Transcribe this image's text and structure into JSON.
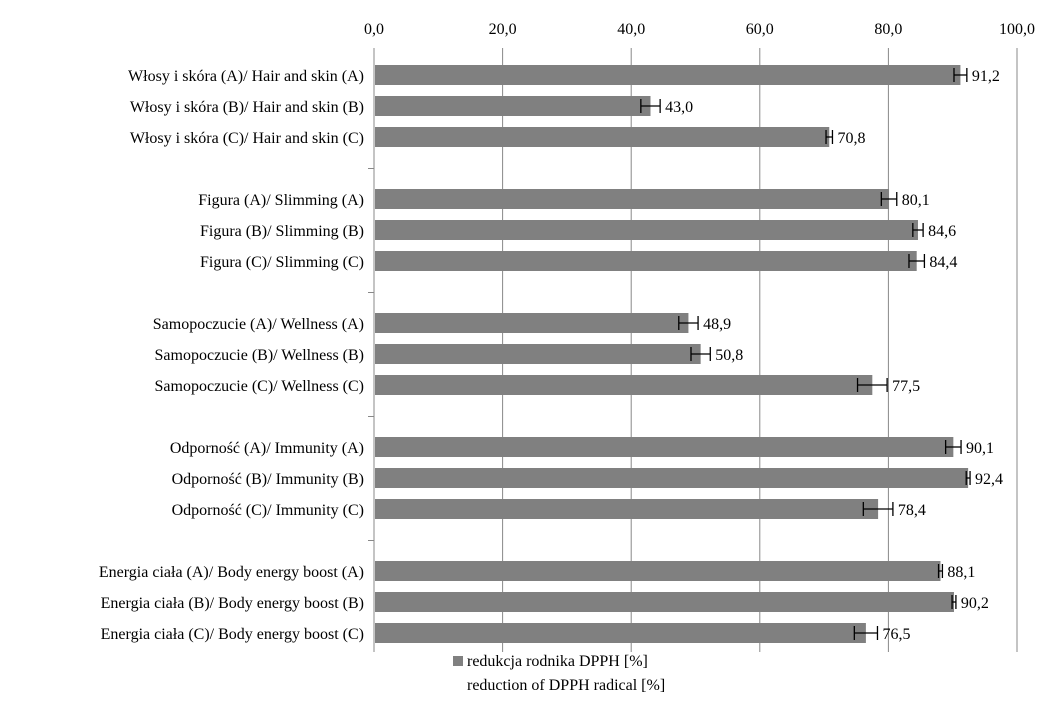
{
  "chart_data": {
    "type": "bar",
    "orientation": "horizontal",
    "xlim": [
      0,
      100
    ],
    "ticks": [
      {
        "value": 0,
        "label": "0,0"
      },
      {
        "value": 20,
        "label": "20,0"
      },
      {
        "value": 40,
        "label": "40,0"
      },
      {
        "value": 60,
        "label": "60,0"
      },
      {
        "value": 80,
        "label": "80,0"
      },
      {
        "value": 100,
        "label": "100,0"
      }
    ],
    "grid": "vertical",
    "x_axis_position": "top",
    "bar_color": "#808080",
    "groups": [
      {
        "bars": [
          {
            "category": "Włosy i skóra (A)/ Hair and skin (A)",
            "value": 91.2,
            "error": 1.0,
            "label": "91,2"
          },
          {
            "category": "Włosy i skóra (B)/ Hair and skin (B)",
            "value": 43.0,
            "error": 1.5,
            "label": "43,0"
          },
          {
            "category": "Włosy i skóra (C)/ Hair and skin (C)",
            "value": 70.8,
            "error": 0.5,
            "label": "70,8"
          }
        ]
      },
      {
        "bars": [
          {
            "category": "Figura (A)/ Slimming (A)",
            "value": 80.1,
            "error": 1.2,
            "label": "80,1"
          },
          {
            "category": "Figura (B)/ Slimming (B)",
            "value": 84.6,
            "error": 0.8,
            "label": "84,6"
          },
          {
            "category": "Figura (C)/ Slimming (C)",
            "value": 84.4,
            "error": 1.2,
            "label": "84,4"
          }
        ]
      },
      {
        "bars": [
          {
            "category": "Samopoczucie (A)/ Wellness (A)",
            "value": 48.9,
            "error": 1.5,
            "label": "48,9"
          },
          {
            "category": "Samopoczucie (B)/ Wellness (B)",
            "value": 50.8,
            "error": 1.5,
            "label": "50,8"
          },
          {
            "category": "Samopoczucie (C)/ Wellness (C)",
            "value": 77.5,
            "error": 2.3,
            "label": "77,5"
          }
        ]
      },
      {
        "bars": [
          {
            "category": "Odporność (A)/ Immunity (A)",
            "value": 90.1,
            "error": 1.2,
            "label": "90,1"
          },
          {
            "category": "Odporność (B)/ Immunity (B)",
            "value": 92.4,
            "error": 0.3,
            "label": "92,4"
          },
          {
            "category": "Odporność (C)/ Immunity (C)",
            "value": 78.4,
            "error": 2.3,
            "label": "78,4"
          }
        ]
      },
      {
        "bars": [
          {
            "category": "Energia ciała (A)/ Body energy boost (A)",
            "value": 88.1,
            "error": 0.3,
            "label": "88,1"
          },
          {
            "category": "Energia ciała (B)/ Body energy boost (B)",
            "value": 90.2,
            "error": 0.3,
            "label": "90,2"
          },
          {
            "category": "Energia ciała (C)/ Body energy boost (C)",
            "value": 76.5,
            "error": 1.8,
            "label": "76,5"
          }
        ]
      }
    ],
    "legend": {
      "position": "bottom",
      "entries": [
        "redukcja rodnika DPPH [%]",
        "reduction of DPPH radical [%]"
      ]
    }
  }
}
